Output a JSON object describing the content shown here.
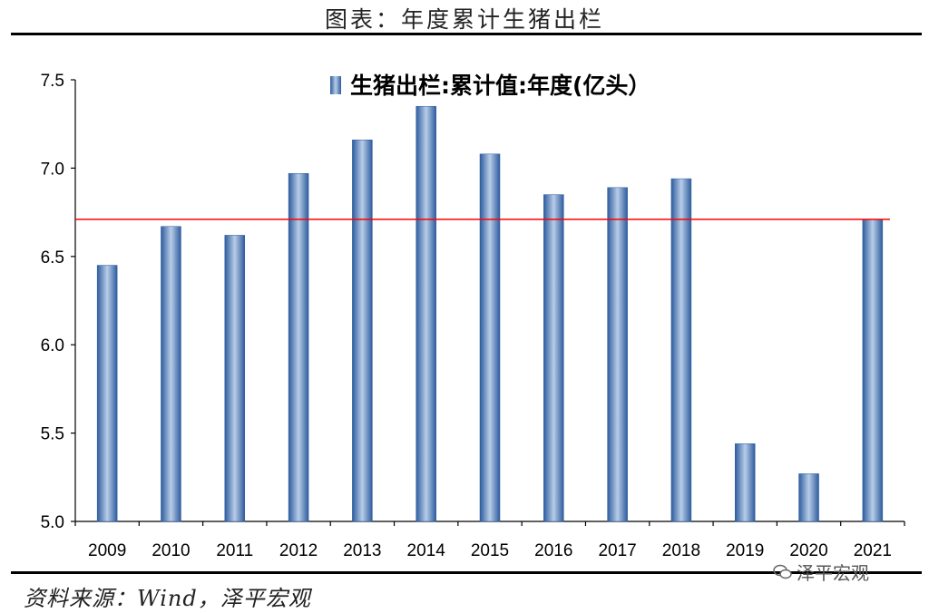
{
  "figure": {
    "title": "图表：年度累计生猪出栏",
    "source": "资料来源：Wind，泽平宏观",
    "watermark": "泽平宏观"
  },
  "chart_data": {
    "type": "bar",
    "categories": [
      "2009",
      "2010",
      "2011",
      "2012",
      "2013",
      "2014",
      "2015",
      "2016",
      "2017",
      "2018",
      "2019",
      "2020",
      "2021"
    ],
    "series": [
      {
        "name": "生猪出栏:累计值:年度(亿头）",
        "values": [
          6.45,
          6.67,
          6.62,
          6.97,
          7.16,
          7.35,
          7.08,
          6.85,
          6.89,
          6.94,
          5.44,
          5.27,
          6.71
        ],
        "color": "#4F7FBF"
      }
    ],
    "reference_line": {
      "value": 6.71,
      "color": "#FF0000"
    },
    "ylim": [
      5.0,
      7.5
    ],
    "yticks": [
      "5.0",
      "5.5",
      "6.0",
      "6.5",
      "7.0",
      "7.5"
    ],
    "grid": false,
    "legend": "top-center",
    "title": "",
    "xlabel": "",
    "ylabel": ""
  }
}
